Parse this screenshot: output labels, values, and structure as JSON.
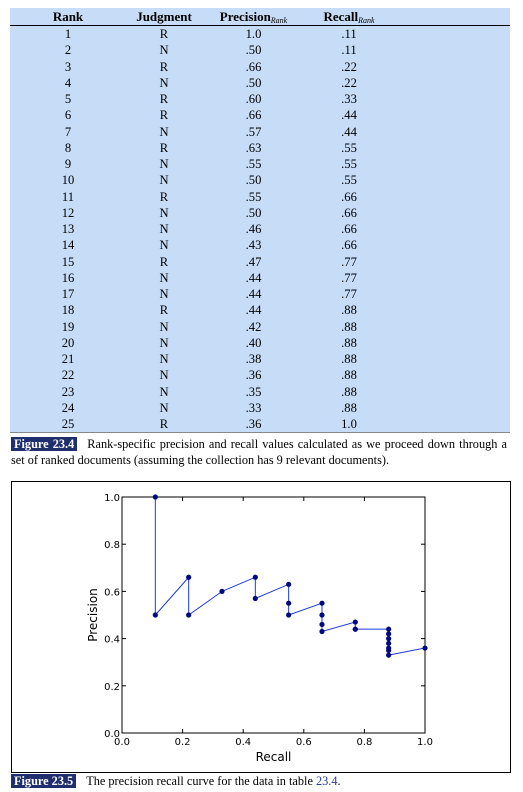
{
  "table": {
    "headers": {
      "rank": "Rank",
      "judgment": "Judgment",
      "precision": "Precision",
      "precision_sub": "Rank",
      "recall": "Recall",
      "recall_sub": "Rank"
    },
    "rows": [
      {
        "rank": "1",
        "judgment": "R",
        "precision": "1.0",
        "recall": ".11"
      },
      {
        "rank": "2",
        "judgment": "N",
        "precision": ".50",
        "recall": ".11"
      },
      {
        "rank": "3",
        "judgment": "R",
        "precision": ".66",
        "recall": ".22"
      },
      {
        "rank": "4",
        "judgment": "N",
        "precision": ".50",
        "recall": ".22"
      },
      {
        "rank": "5",
        "judgment": "R",
        "precision": ".60",
        "recall": ".33"
      },
      {
        "rank": "6",
        "judgment": "R",
        "precision": ".66",
        "recall": ".44"
      },
      {
        "rank": "7",
        "judgment": "N",
        "precision": ".57",
        "recall": ".44"
      },
      {
        "rank": "8",
        "judgment": "R",
        "precision": ".63",
        "recall": ".55"
      },
      {
        "rank": "9",
        "judgment": "N",
        "precision": ".55",
        "recall": ".55"
      },
      {
        "rank": "10",
        "judgment": "N",
        "precision": ".50",
        "recall": ".55"
      },
      {
        "rank": "11",
        "judgment": "R",
        "precision": ".55",
        "recall": ".66"
      },
      {
        "rank": "12",
        "judgment": "N",
        "precision": ".50",
        "recall": ".66"
      },
      {
        "rank": "13",
        "judgment": "N",
        "precision": ".46",
        "recall": ".66"
      },
      {
        "rank": "14",
        "judgment": "N",
        "precision": ".43",
        "recall": ".66"
      },
      {
        "rank": "15",
        "judgment": "R",
        "precision": ".47",
        "recall": ".77"
      },
      {
        "rank": "16",
        "judgment": "N",
        "precision": ".44",
        "recall": ".77"
      },
      {
        "rank": "17",
        "judgment": "N",
        "precision": ".44",
        "recall": ".77"
      },
      {
        "rank": "18",
        "judgment": "R",
        "precision": ".44",
        "recall": ".88"
      },
      {
        "rank": "19",
        "judgment": "N",
        "precision": ".42",
        "recall": ".88"
      },
      {
        "rank": "20",
        "judgment": "N",
        "precision": ".40",
        "recall": ".88"
      },
      {
        "rank": "21",
        "judgment": "N",
        "precision": ".38",
        "recall": ".88"
      },
      {
        "rank": "22",
        "judgment": "N",
        "precision": ".36",
        "recall": ".88"
      },
      {
        "rank": "23",
        "judgment": "N",
        "precision": ".35",
        "recall": ".88"
      },
      {
        "rank": "24",
        "judgment": "N",
        "precision": ".33",
        "recall": ".88"
      },
      {
        "rank": "25",
        "judgment": "R",
        "precision": ".36",
        "recall": "1.0"
      }
    ]
  },
  "caption_234": {
    "label": "Figure 23.4",
    "text": "Rank-specific precision and recall values calculated as we proceed down through a set of ranked documents (assuming the collection has 9 relevant documents)."
  },
  "caption_235": {
    "label": "Figure 23.5",
    "text_before": "The precision recall curve for the data in table ",
    "ref": "23.4",
    "text_after": "."
  },
  "chart_data": {
    "type": "line",
    "xlabel": "Recall",
    "ylabel": "Precision",
    "xlim": [
      0.0,
      1.0
    ],
    "ylim": [
      0.0,
      1.0
    ],
    "xticks": [
      "0.0",
      "0.2",
      "0.4",
      "0.6",
      "0.8",
      "1.0"
    ],
    "yticks": [
      "0.0",
      "0.2",
      "0.4",
      "0.6",
      "0.8",
      "1.0"
    ],
    "line_color": "#1f3bd9",
    "marker_color": "#000a80",
    "x": [
      0.11,
      0.11,
      0.22,
      0.22,
      0.33,
      0.44,
      0.44,
      0.55,
      0.55,
      0.55,
      0.66,
      0.66,
      0.66,
      0.66,
      0.77,
      0.77,
      0.77,
      0.88,
      0.88,
      0.88,
      0.88,
      0.88,
      0.88,
      0.88,
      1.0
    ],
    "y": [
      1.0,
      0.5,
      0.66,
      0.5,
      0.6,
      0.66,
      0.57,
      0.63,
      0.55,
      0.5,
      0.55,
      0.5,
      0.46,
      0.43,
      0.47,
      0.44,
      0.44,
      0.44,
      0.42,
      0.4,
      0.38,
      0.36,
      0.35,
      0.33,
      0.36
    ]
  }
}
